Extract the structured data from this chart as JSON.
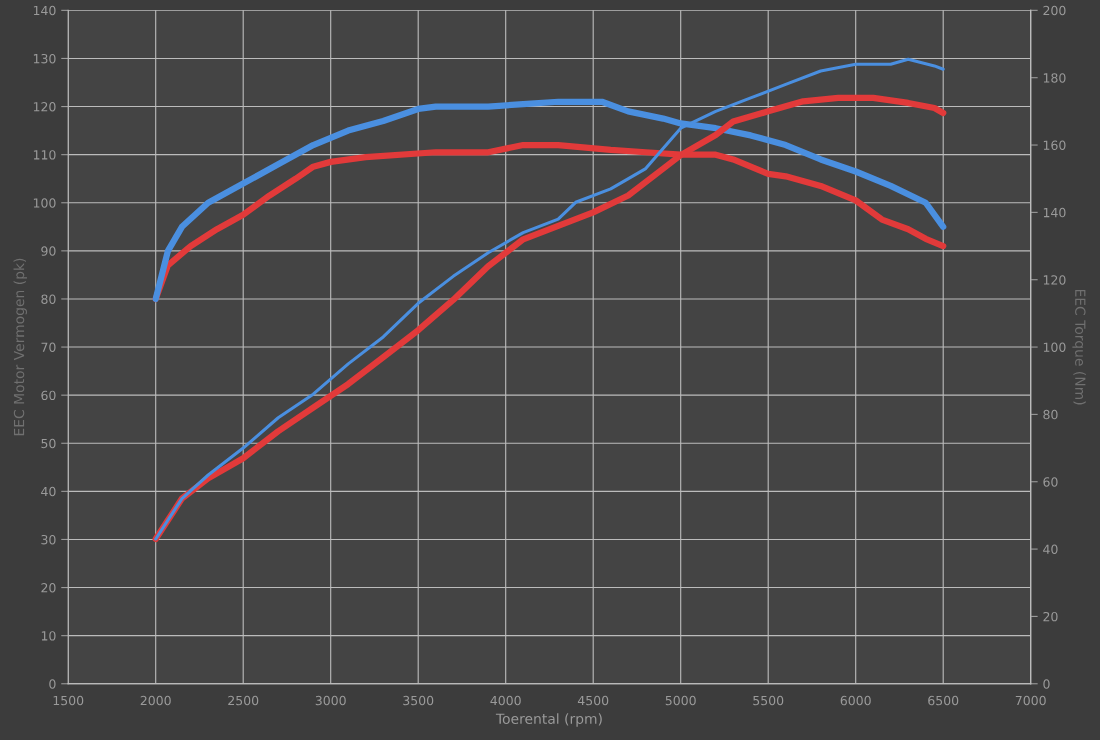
{
  "chart_data": {
    "type": "line",
    "xlabel": "Toerental (rpm)",
    "ylabel": "EEC Motor Vermogen (pk)",
    "y2label": "EEC Torque (Nm)",
    "xlim": [
      1500,
      7000
    ],
    "xticks": [
      1500,
      2000,
      2500,
      3000,
      3500,
      4000,
      4500,
      5000,
      5500,
      6000,
      6500,
      7000
    ],
    "ylim": [
      0,
      140
    ],
    "yticks": [
      0,
      10,
      20,
      30,
      40,
      50,
      60,
      70,
      80,
      90,
      100,
      110,
      120,
      130,
      140
    ],
    "y2lim": [
      0,
      200
    ],
    "y2ticks": [
      0,
      20,
      40,
      60,
      80,
      100,
      120,
      140,
      160,
      180,
      200
    ],
    "grid": true,
    "legend": false,
    "marker": "none",
    "line_style": "solid",
    "series": [
      {
        "color": "#e23a3a",
        "x": [
          2000,
          2070,
          2200,
          2350,
          2500,
          2650,
          2800,
          2900,
          3000,
          3200,
          3600,
          3900,
          4100,
          4300,
          4600,
          4800,
          5000,
          5200,
          5300,
          5500,
          5600,
          5800,
          6000,
          6150,
          6300,
          6400,
          6500
        ],
        "values": [
          80,
          87,
          91,
          94.5,
          97.5,
          101.5,
          105,
          107.5,
          108.5,
          109.5,
          110.5,
          110.5,
          112,
          112,
          111,
          110.5,
          110,
          110,
          109,
          106,
          105.5,
          103.5,
          100.5,
          96.5,
          94.5,
          92.5,
          91
        ]
      },
      {
        "color": "#4a8fe0",
        "x": [
          2000,
          2070,
          2150,
          2300,
          2500,
          2700,
          2900,
          3100,
          3300,
          3500,
          3600,
          3900,
          4100,
          4300,
          4550,
          4700,
          4900,
          5000,
          5200,
          5400,
          5600,
          5800,
          6000,
          6200,
          6400,
          6500
        ],
        "values": [
          80,
          90,
          95,
          100,
          104,
          108,
          112,
          115,
          117,
          119.5,
          120,
          120,
          120.5,
          121,
          121,
          119,
          117.5,
          116.5,
          115.5,
          114,
          112,
          109,
          106.5,
          103.5,
          100,
          95
        ]
      },
      {
        "color": "#e23a3a",
        "axis": "y2",
        "x": [
          2000,
          2150,
          2300,
          2500,
          2700,
          2900,
          3100,
          3300,
          3500,
          3700,
          3900,
          4100,
          4300,
          4500,
          4700,
          4900,
          5000,
          5200,
          5300,
          5500,
          5700,
          5900,
          6100,
          6300,
          6450,
          6500
        ],
        "values": [
          43,
          55,
          61,
          67,
          75,
          82,
          89,
          97,
          105,
          114,
          124,
          132,
          136,
          140,
          145,
          153,
          157,
          163,
          167,
          170,
          173,
          174,
          174,
          172.5,
          171,
          169.5
        ]
      },
      {
        "color": "#4a8fe0",
        "axis": "y2",
        "x": [
          2000,
          2150,
          2300,
          2500,
          2700,
          2900,
          3100,
          3300,
          3500,
          3700,
          3900,
          4100,
          4300,
          4400,
          4600,
          4800,
          5000,
          5200,
          5400,
          5600,
          5800,
          6000,
          6200,
          6300,
          6450,
          6500
        ],
        "values": [
          43,
          55,
          62,
          70,
          79,
          86,
          95,
          103,
          113,
          121,
          128,
          134,
          138,
          143,
          147,
          153,
          165,
          170,
          174,
          178,
          182,
          184,
          184,
          185.5,
          183.5,
          182.5
        ]
      }
    ]
  }
}
